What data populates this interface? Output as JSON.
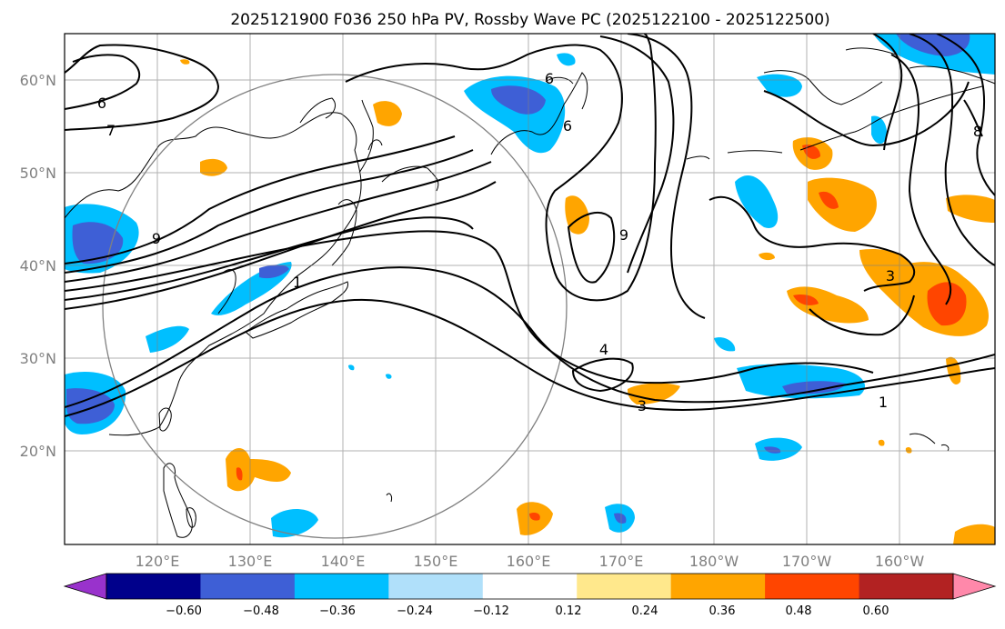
{
  "title": "2025121900 F036 250 hPa PV, Rossby Wave PC (2025122100 - 2025122500)",
  "map": {
    "lon_ticks": [
      "120°E",
      "130°E",
      "140°E",
      "150°E",
      "160°E",
      "170°E",
      "180°W",
      "170°W",
      "160°W"
    ],
    "lat_ticks": [
      "60°N",
      "50°N",
      "40°N",
      "30°N",
      "20°N"
    ],
    "contour_labels": [
      "6",
      "7",
      "1",
      "4",
      "3",
      "1",
      "6",
      "9",
      "3",
      "8",
      "6",
      "9"
    ]
  },
  "colorbar": {
    "colors": [
      "#9932cc",
      "#00008b",
      "#3e5fd6",
      "#00bfff",
      "#b0e0fa",
      "#ffffff",
      "#ffe88c",
      "#ffa500",
      "#ff4500",
      "#b22222",
      "#ff88aa"
    ],
    "tick_labels": [
      "−0.60",
      "−0.48",
      "−0.36",
      "−0.24",
      "−0.12",
      "0.12",
      "0.24",
      "0.36",
      "0.48",
      "0.60"
    ]
  }
}
